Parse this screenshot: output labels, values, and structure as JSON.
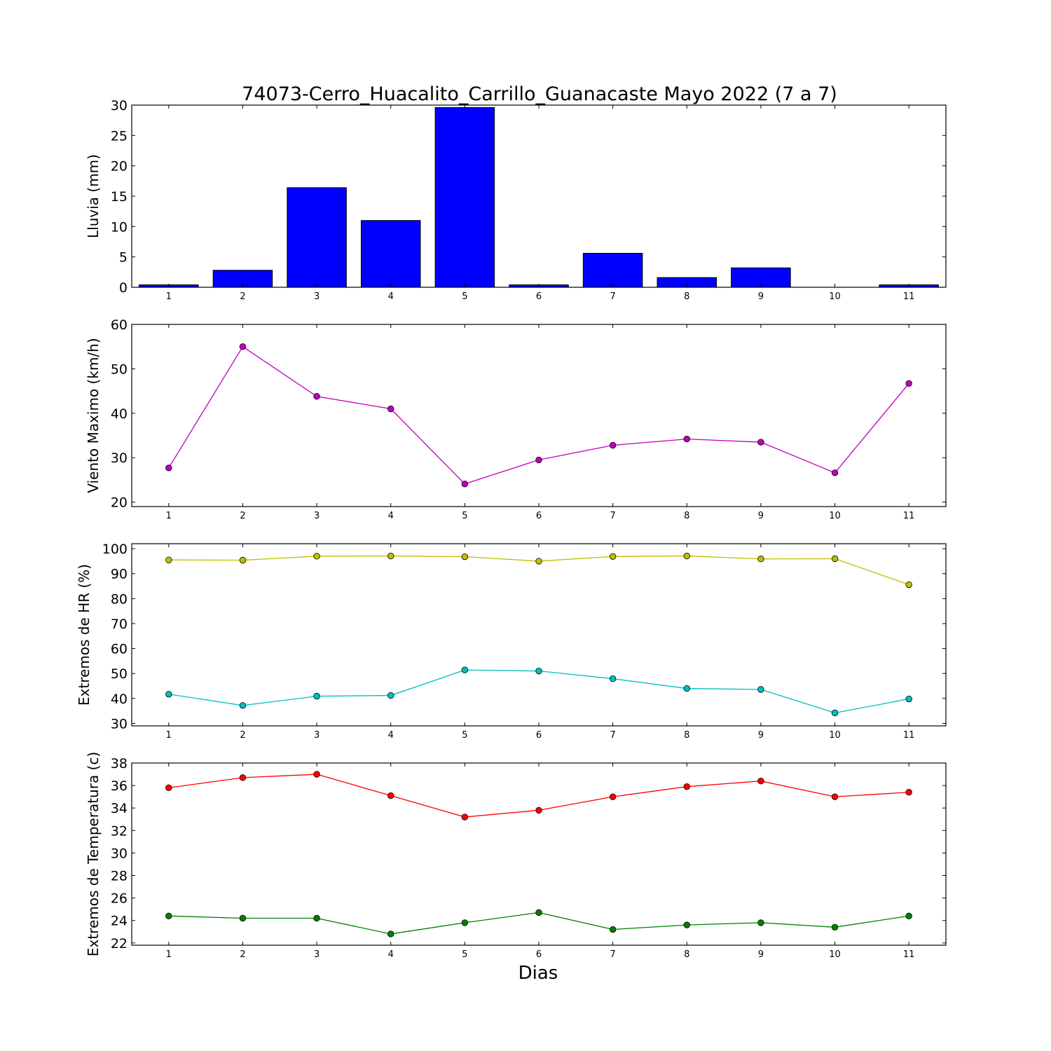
{
  "title": "74073-Cerro_Huacalito_Carrillo_Guanacaste Mayo 2022  (7 a 7)",
  "xlabel": "Dias",
  "chart_data": [
    {
      "type": "bar",
      "ylabel": "Lluvia (mm)",
      "x": [
        1,
        2,
        3,
        4,
        5,
        6,
        7,
        8,
        9,
        10,
        11
      ],
      "ylim": [
        0,
        30
      ],
      "yticks": [
        0,
        5,
        10,
        15,
        20,
        25,
        30
      ],
      "series": [
        {
          "values": [
            0.4,
            2.8,
            16.4,
            11.0,
            29.6,
            0.4,
            5.6,
            1.6,
            3.2,
            0.0,
            0.4
          ],
          "color": "#0000ff"
        }
      ]
    },
    {
      "type": "line",
      "ylabel": "Viento Maximo (km/h)",
      "x": [
        1,
        2,
        3,
        4,
        5,
        6,
        7,
        8,
        9,
        10,
        11
      ],
      "ylim": [
        19,
        60
      ],
      "yticks": [
        20,
        30,
        40,
        50,
        60
      ],
      "series": [
        {
          "values": [
            27.7,
            55.0,
            43.8,
            41.0,
            24.1,
            29.5,
            32.8,
            34.2,
            33.5,
            26.6,
            46.7
          ],
          "color": "#bf00bf"
        }
      ]
    },
    {
      "type": "line",
      "ylabel": "Extremos de HR (%)",
      "x": [
        1,
        2,
        3,
        4,
        5,
        6,
        7,
        8,
        9,
        10,
        11
      ],
      "ylim": [
        29,
        102
      ],
      "yticks": [
        30,
        40,
        50,
        60,
        70,
        80,
        90,
        100
      ],
      "series": [
        {
          "values": [
            95.5,
            95.4,
            97.0,
            97.1,
            96.8,
            95.0,
            96.9,
            97.1,
            95.9,
            96.0,
            85.6
          ],
          "color": "#bfbf00"
        },
        {
          "values": [
            41.7,
            37.2,
            40.9,
            41.2,
            51.4,
            51.0,
            47.9,
            44.0,
            43.6,
            34.2,
            39.8
          ],
          "color": "#00bfbf"
        }
      ]
    },
    {
      "type": "line",
      "ylabel": "Extremos de Temperatura (c)",
      "x": [
        1,
        2,
        3,
        4,
        5,
        6,
        7,
        8,
        9,
        10,
        11
      ],
      "ylim": [
        21.8,
        38
      ],
      "yticks": [
        22,
        24,
        26,
        28,
        30,
        32,
        34,
        36,
        38
      ],
      "series": [
        {
          "values": [
            35.8,
            36.7,
            37.0,
            35.1,
            33.2,
            33.8,
            35.0,
            35.9,
            36.4,
            35.0,
            35.4
          ],
          "color": "#ff0000"
        },
        {
          "values": [
            24.4,
            24.2,
            24.2,
            22.8,
            23.8,
            24.7,
            23.2,
            23.6,
            23.8,
            23.4,
            24.4
          ],
          "color": "#008000"
        }
      ]
    }
  ]
}
